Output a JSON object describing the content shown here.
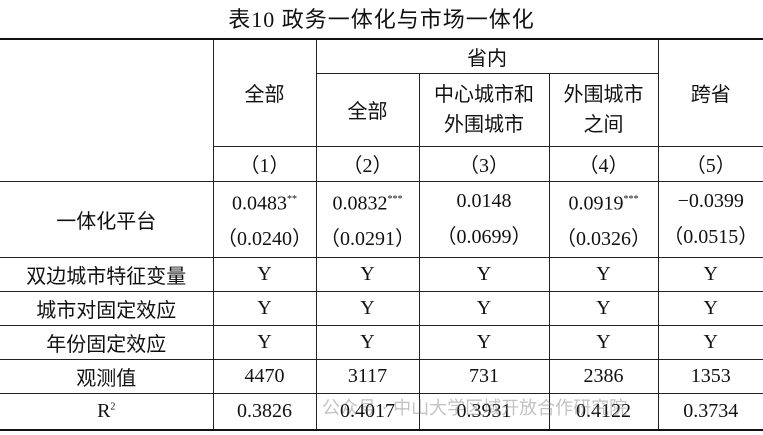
{
  "title": "表10  政务一体化与市场一体化",
  "header": {
    "group": "省内",
    "cross": "跨省",
    "all": "全部",
    "in_all": "全部",
    "center": "中心城市和外围城市",
    "periphery": "外围城市之间",
    "numbers": [
      "（1）",
      "（2）",
      "（3）",
      "（4）",
      "（5）"
    ]
  },
  "platform": {
    "label": "一体化平台",
    "estimates": [
      {
        "value": "0.0483",
        "stars": "**"
      },
      {
        "value": "0.0832",
        "stars": "***"
      },
      {
        "value": "0.0148",
        "stars": ""
      },
      {
        "value": "0.0919",
        "stars": "***"
      },
      {
        "value": "−0.0399",
        "stars": ""
      }
    ],
    "se": [
      "（0.0240）",
      "（0.0291）",
      "（0.0699）",
      "（0.0326）",
      "（0.0515）"
    ]
  },
  "rows": [
    {
      "label": "双边城市特征变量",
      "cells": [
        "Y",
        "Y",
        "Y",
        "Y",
        "Y"
      ]
    },
    {
      "label": "城市对固定效应",
      "cells": [
        "Y",
        "Y",
        "Y",
        "Y",
        "Y"
      ]
    },
    {
      "label": "年份固定效应",
      "cells": [
        "Y",
        "Y",
        "Y",
        "Y",
        "Y"
      ]
    },
    {
      "label": "观测值",
      "cells": [
        "4470",
        "3117",
        "731",
        "2386",
        "1353"
      ]
    }
  ],
  "r2": {
    "label": "R",
    "sup": "2",
    "cells": [
      "0.3826",
      "0.4017",
      "0.3931",
      "0.4122",
      "0.3734"
    ]
  },
  "watermark": "公众号 · 中山大学区域开放合作研究院"
}
